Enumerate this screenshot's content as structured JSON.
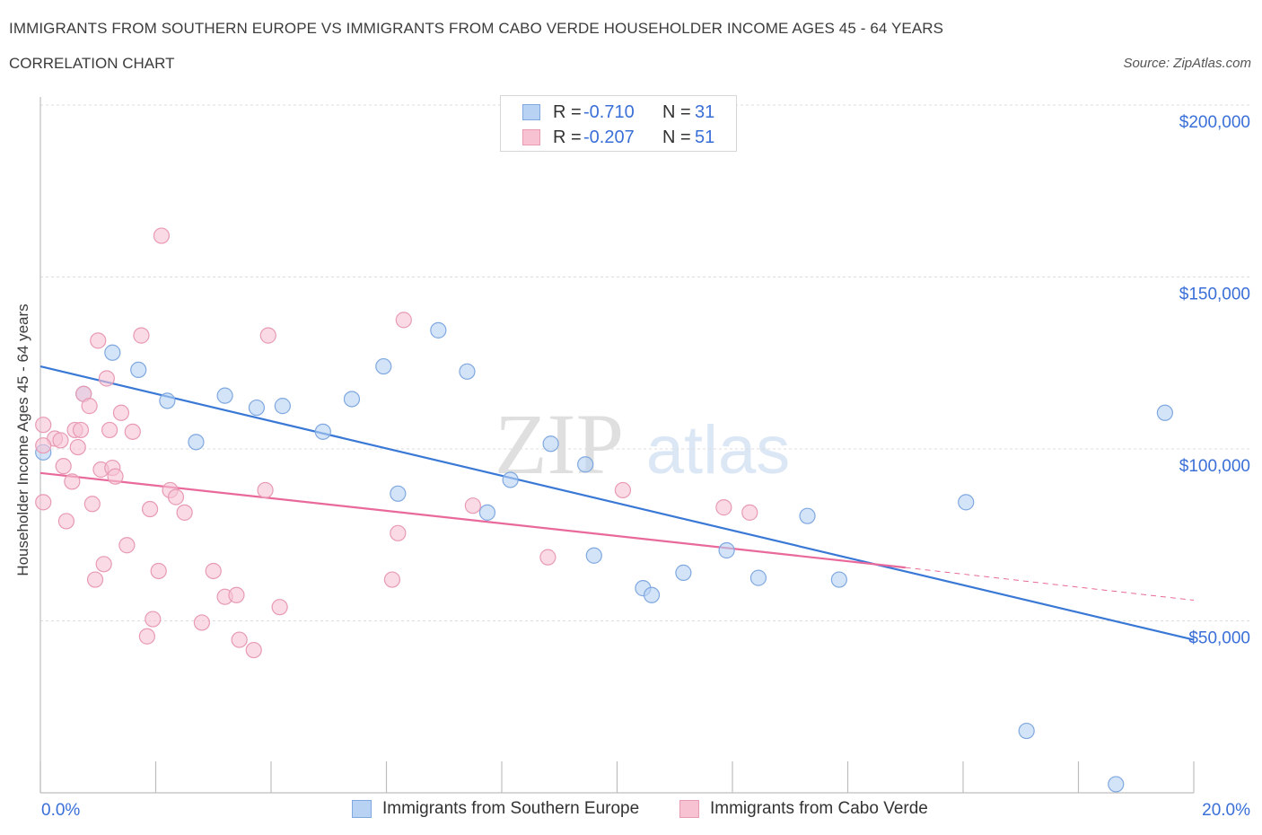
{
  "title": "IMMIGRANTS FROM SOUTHERN EUROPE VS IMMIGRANTS FROM CABO VERDE HOUSEHOLDER INCOME AGES 45 - 64 YEARS",
  "subtitle": "CORRELATION CHART",
  "source": "Source: ZipAtlas.com",
  "watermark": {
    "zip": "ZIP",
    "atlas": "atlas"
  },
  "legend": {
    "r_label": "R =",
    "n_label": "N =",
    "rows": [
      {
        "r": "-0.710",
        "n": "31"
      },
      {
        "r": "-0.207",
        "n": "51"
      }
    ]
  },
  "colors": {
    "blue": "#3a78d6",
    "blue_fill": "#b8d2f4",
    "pink": "#e8699a",
    "pink_fill": "#f7c3d3",
    "axis_label": "#3a6fd8",
    "grid": "#dcdcdc"
  },
  "chart_data": {
    "type": "scatter",
    "title": "IMMIGRANTS FROM SOUTHERN EUROPE VS IMMIGRANTS FROM CABO VERDE HOUSEHOLDER INCOME AGES 45 - 64 YEARS",
    "xlabel": "",
    "ylabel": "Householder Income Ages 45 - 64 years",
    "xlim": [
      0,
      20
    ],
    "ylim": [
      0,
      200000
    ],
    "x_tick_labels": [
      "0.0%",
      "20.0%"
    ],
    "y_ticks": [
      50000,
      100000,
      150000,
      200000
    ],
    "y_tick_labels": [
      "$50,000",
      "$100,000",
      "$150,000",
      "$200,000"
    ],
    "grid": true,
    "legend_position": "top-center",
    "series": [
      {
        "name": "Immigrants from Southern Europe",
        "r": -0.71,
        "n": 31,
        "trend": {
          "x": [
            0,
            20
          ],
          "y": [
            124000,
            44500
          ]
        },
        "points": [
          [
            0.05,
            99000
          ],
          [
            0.75,
            116000
          ],
          [
            1.25,
            128000
          ],
          [
            1.7,
            123000
          ],
          [
            2.2,
            114000
          ],
          [
            2.7,
            102000
          ],
          [
            3.2,
            115500
          ],
          [
            3.75,
            112000
          ],
          [
            4.2,
            112500
          ],
          [
            4.9,
            105000
          ],
          [
            5.4,
            114500
          ],
          [
            5.95,
            124000
          ],
          [
            6.2,
            87000
          ],
          [
            6.9,
            134500
          ],
          [
            7.4,
            122500
          ],
          [
            7.75,
            81500
          ],
          [
            8.15,
            91000
          ],
          [
            8.85,
            101500
          ],
          [
            9.45,
            95500
          ],
          [
            9.6,
            69000
          ],
          [
            10.45,
            59500
          ],
          [
            10.6,
            57500
          ],
          [
            11.15,
            64000
          ],
          [
            11.9,
            70500
          ],
          [
            12.45,
            62500
          ],
          [
            13.3,
            80500
          ],
          [
            13.85,
            62000
          ],
          [
            16.05,
            84500
          ],
          [
            17.1,
            18000
          ],
          [
            18.65,
            2500
          ],
          [
            19.5,
            110500
          ]
        ]
      },
      {
        "name": "Immigrants from Cabo Verde",
        "r": -0.207,
        "n": 51,
        "trend": {
          "x": [
            0,
            15
          ],
          "y": [
            93000,
            65500
          ]
        },
        "trend_dashed": {
          "x": [
            15,
            20
          ],
          "y": [
            65500,
            56000
          ]
        },
        "points": [
          [
            0.05,
            107000
          ],
          [
            0.05,
            84500
          ],
          [
            0.25,
            103000
          ],
          [
            0.35,
            102500
          ],
          [
            0.4,
            95000
          ],
          [
            0.45,
            79000
          ],
          [
            0.55,
            90500
          ],
          [
            0.6,
            105500
          ],
          [
            0.65,
            100500
          ],
          [
            0.7,
            105500
          ],
          [
            0.75,
            116000
          ],
          [
            0.85,
            112500
          ],
          [
            0.9,
            84000
          ],
          [
            0.95,
            62000
          ],
          [
            1.0,
            131500
          ],
          [
            1.05,
            94000
          ],
          [
            1.1,
            66500
          ],
          [
            1.15,
            120500
          ],
          [
            1.2,
            105500
          ],
          [
            1.25,
            94500
          ],
          [
            1.3,
            92000
          ],
          [
            1.4,
            110500
          ],
          [
            1.5,
            72000
          ],
          [
            1.6,
            105000
          ],
          [
            1.75,
            133000
          ],
          [
            1.85,
            45500
          ],
          [
            1.9,
            82500
          ],
          [
            1.95,
            50500
          ],
          [
            2.05,
            64500
          ],
          [
            2.1,
            162000
          ],
          [
            2.25,
            88000
          ],
          [
            2.35,
            86000
          ],
          [
            2.5,
            81500
          ],
          [
            2.8,
            49500
          ],
          [
            3.0,
            64500
          ],
          [
            3.2,
            57000
          ],
          [
            3.4,
            57500
          ],
          [
            3.45,
            44500
          ],
          [
            3.7,
            41500
          ],
          [
            3.9,
            88000
          ],
          [
            3.95,
            133000
          ],
          [
            4.15,
            54000
          ],
          [
            6.1,
            62000
          ],
          [
            6.2,
            75500
          ],
          [
            6.3,
            137500
          ],
          [
            7.5,
            83500
          ],
          [
            8.8,
            68500
          ],
          [
            10.1,
            88000
          ],
          [
            11.85,
            83000
          ],
          [
            12.3,
            81500
          ],
          [
            0.05,
            101000
          ]
        ]
      }
    ]
  }
}
